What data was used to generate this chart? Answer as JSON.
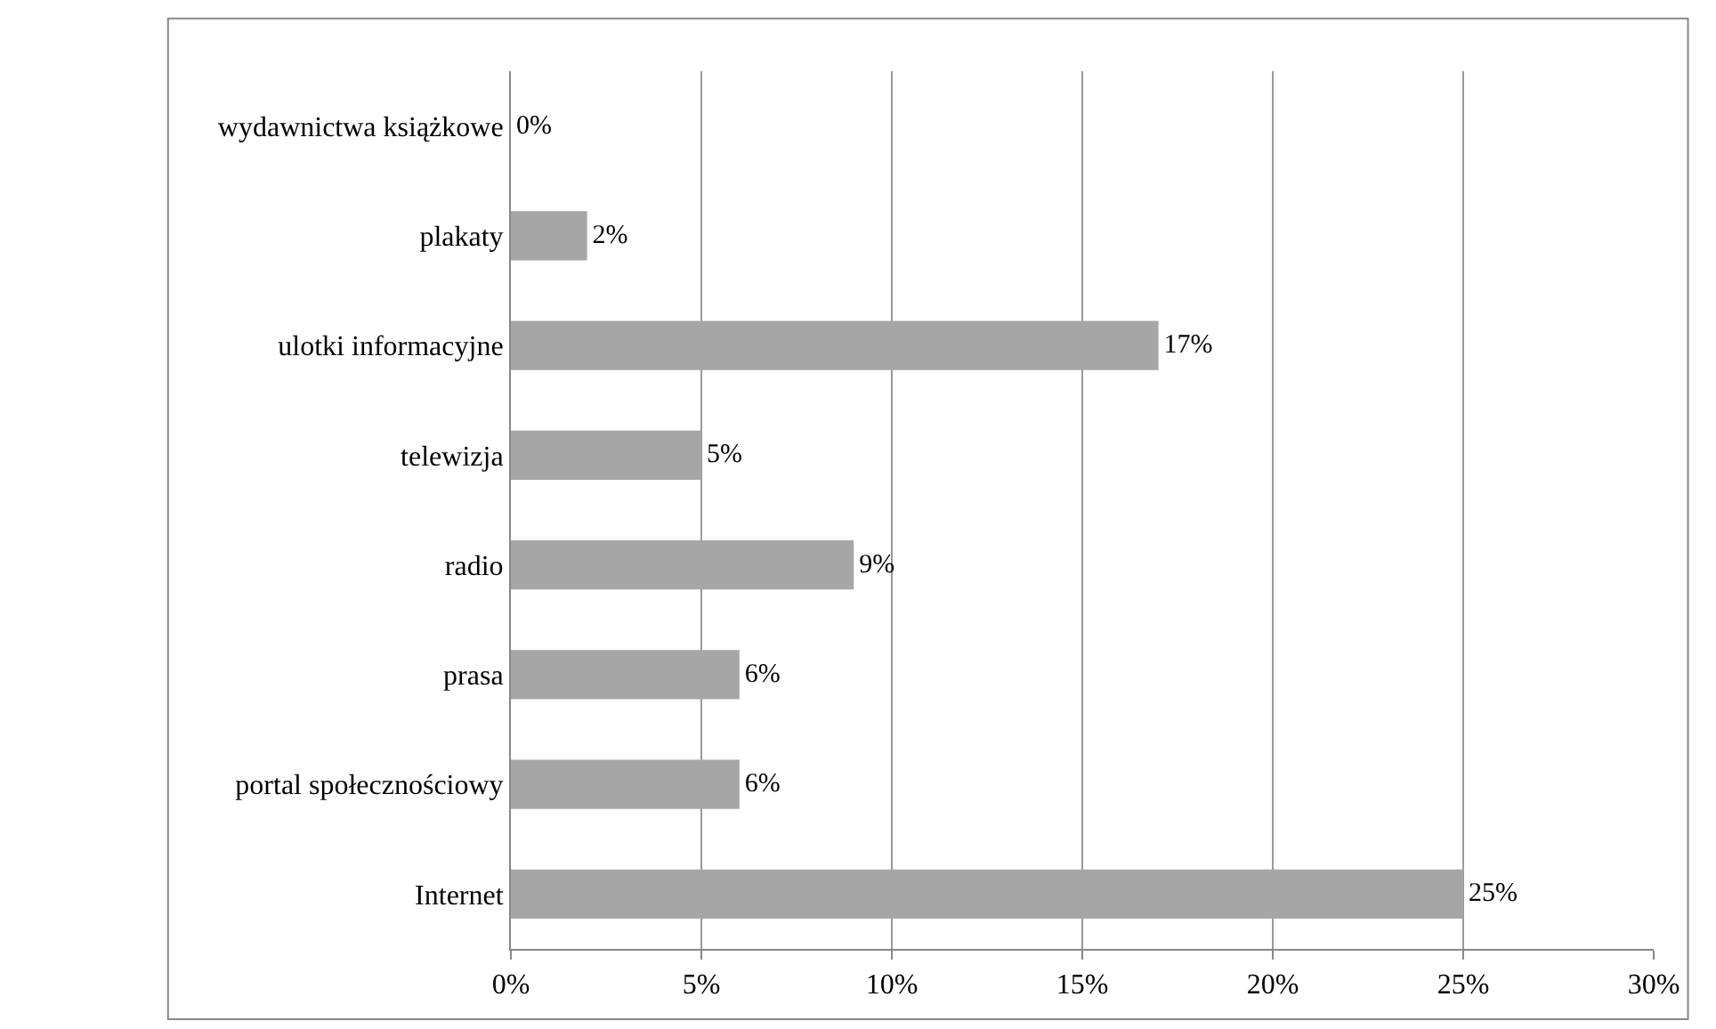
{
  "chart_data": {
    "type": "bar",
    "orientation": "horizontal",
    "categories": [
      "wydawnictwa książkowe",
      "plakaty",
      "ulotki informacyjne",
      "telewizja",
      "radio",
      "prasa",
      "portal społecznościowy",
      "Internet"
    ],
    "values": [
      0,
      2,
      17,
      5,
      9,
      6,
      6,
      25
    ],
    "value_labels": [
      "0%",
      "2%",
      "17%",
      "5%",
      "9%",
      "6%",
      "6%",
      "25%"
    ],
    "color": "#a6a6a6",
    "xlim": [
      0,
      30
    ],
    "xticks": [
      {
        "value": 0,
        "label": "0%"
      },
      {
        "value": 5,
        "label": "5%"
      },
      {
        "value": 10,
        "label": "10%"
      },
      {
        "value": 15,
        "label": "15%"
      },
      {
        "value": 20,
        "label": "20%"
      },
      {
        "value": 25,
        "label": "25%"
      },
      {
        "value": 30,
        "label": "30%"
      }
    ],
    "grid": "x",
    "legend": false
  }
}
